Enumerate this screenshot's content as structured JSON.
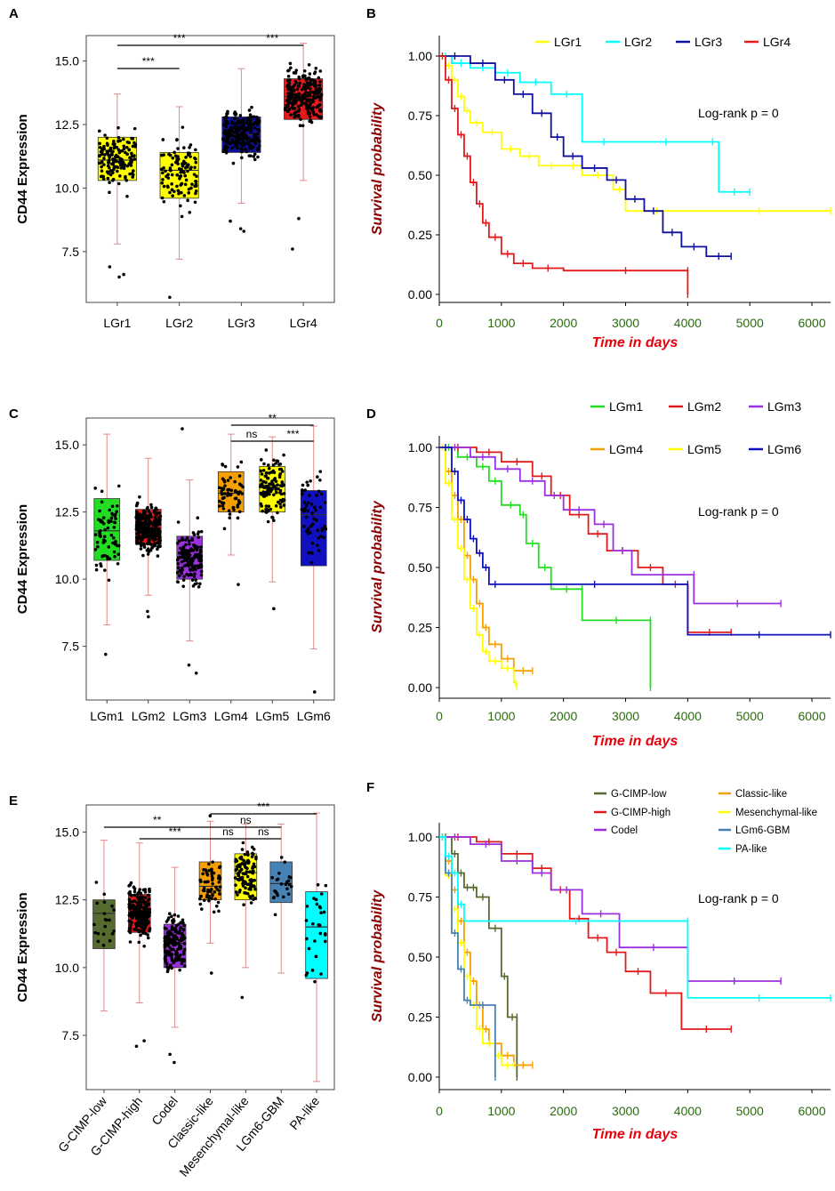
{
  "chart_data": [
    {
      "panel": "A",
      "type": "box",
      "ylabel": "CD44 Expression",
      "ylim": [
        5.5,
        16.0
      ],
      "yticks": [
        7.5,
        10.0,
        12.5,
        15.0
      ],
      "ytick_labels": [
        "7.5",
        "10.0",
        "12.5",
        "15.0"
      ],
      "groups": [
        {
          "name": "LGr1",
          "color": "#ffff00",
          "q1": 10.3,
          "median": 11.1,
          "q3": 12.0,
          "min": 7.8,
          "max": 13.7,
          "n": 150,
          "outliers": [
            6.5,
            6.6,
            6.9
          ]
        },
        {
          "name": "LGr2",
          "color": "#ffff00",
          "q1": 9.6,
          "median": 10.7,
          "q3": 11.4,
          "min": 7.2,
          "max": 13.2,
          "n": 110,
          "outliers": [
            5.7
          ]
        },
        {
          "name": "LGr3",
          "color": "#1010a0",
          "q1": 11.4,
          "median": 12.1,
          "q3": 12.8,
          "min": 9.4,
          "max": 14.7,
          "n": 230,
          "outliers": [
            8.3,
            8.4,
            8.7
          ]
        },
        {
          "name": "LGr4",
          "color": "#e31a1c",
          "q1": 12.7,
          "median": 13.6,
          "q3": 14.3,
          "min": 10.3,
          "max": 15.7,
          "n": 230,
          "outliers": [
            7.6,
            8.8
          ]
        }
      ],
      "sig": [
        {
          "from": 0,
          "to": 1,
          "label": "***",
          "level": 1
        },
        {
          "from": 0,
          "to": 2,
          "label": "***",
          "level": 2
        },
        {
          "from": 2,
          "to": 3,
          "label": "***",
          "level": 2
        }
      ]
    },
    {
      "panel": "B",
      "type": "line",
      "subtype": "kaplan-meier",
      "title": "",
      "xlabel": "Time in days",
      "ylabel": "Survival probability",
      "xlim": [
        0,
        6300
      ],
      "ylim": [
        0,
        1.05
      ],
      "xticks": [
        0,
        1000,
        2000,
        3000,
        4000,
        5000,
        6000
      ],
      "yticks": [
        "0.00",
        "0.25",
        "0.50",
        "0.75",
        "1.00"
      ],
      "annotation": "Log-rank p = 0",
      "legend_position": "top",
      "series": [
        {
          "name": "LGr1",
          "color": "#ffff00",
          "x": [
            0,
            100,
            200,
            300,
            400,
            500,
            700,
            1000,
            1300,
            1600,
            2000,
            2300,
            2800,
            3000,
            4000,
            6300
          ],
          "y": [
            1.0,
            0.96,
            0.9,
            0.83,
            0.77,
            0.72,
            0.68,
            0.61,
            0.58,
            0.54,
            0.54,
            0.5,
            0.44,
            0.35,
            0.35,
            0.35
          ]
        },
        {
          "name": "LGr2",
          "color": "#00ffff",
          "x": [
            0,
            200,
            500,
            900,
            1300,
            1800,
            2300,
            2300,
            3000,
            4300,
            4500,
            5000
          ],
          "y": [
            1.0,
            0.97,
            0.95,
            0.93,
            0.89,
            0.84,
            0.74,
            0.64,
            0.64,
            0.64,
            0.43,
            0.43
          ]
        },
        {
          "name": "LGr3",
          "color": "#1010a0",
          "x": [
            0,
            500,
            900,
            1200,
            1500,
            1800,
            2000,
            2300,
            2700,
            3000,
            3300,
            3600,
            3900,
            4300,
            4700
          ],
          "y": [
            1.0,
            0.97,
            0.9,
            0.84,
            0.76,
            0.66,
            0.58,
            0.53,
            0.48,
            0.4,
            0.35,
            0.26,
            0.2,
            0.16,
            0.16
          ]
        },
        {
          "name": "LGr4",
          "color": "#e31a1c",
          "x": [
            0,
            100,
            200,
            300,
            400,
            500,
            600,
            700,
            800,
            1000,
            1200,
            1500,
            2000,
            4000,
            4000
          ],
          "y": [
            1.0,
            0.9,
            0.78,
            0.67,
            0.58,
            0.47,
            0.38,
            0.3,
            0.24,
            0.17,
            0.13,
            0.11,
            0.1,
            0.1,
            0.0
          ]
        }
      ]
    },
    {
      "panel": "C",
      "type": "box",
      "ylabel": "CD44 Expression",
      "ylim": [
        5.5,
        16.0
      ],
      "yticks": [
        7.5,
        10.0,
        12.5,
        15.0
      ],
      "ytick_labels": [
        "7.5",
        "10.0",
        "12.5",
        "15.0"
      ],
      "groups": [
        {
          "name": "LGm1",
          "color": "#22dd22",
          "q1": 10.7,
          "median": 11.8,
          "q3": 13.0,
          "min": 8.3,
          "max": 15.4,
          "n": 70,
          "outliers": [
            7.2
          ]
        },
        {
          "name": "LGm2",
          "color": "#e31a1c",
          "q1": 11.3,
          "median": 11.9,
          "q3": 12.6,
          "min": 9.4,
          "max": 14.5,
          "n": 240,
          "outliers": [
            8.6,
            8.8
          ]
        },
        {
          "name": "LGm3",
          "color": "#9b30e0",
          "q1": 10.0,
          "median": 10.8,
          "q3": 11.6,
          "min": 7.7,
          "max": 13.7,
          "n": 150,
          "outliers": [
            6.5,
            6.8,
            15.6
          ]
        },
        {
          "name": "LGm4",
          "color": "#f5a000",
          "q1": 12.5,
          "median": 13.2,
          "q3": 14.0,
          "min": 10.9,
          "max": 15.4,
          "n": 60,
          "outliers": [
            9.8
          ]
        },
        {
          "name": "LGm5",
          "color": "#ffff00",
          "q1": 12.5,
          "median": 13.5,
          "q3": 14.2,
          "min": 9.9,
          "max": 15.3,
          "n": 120,
          "outliers": [
            8.9
          ]
        },
        {
          "name": "LGm6",
          "color": "#1010c0",
          "q1": 10.5,
          "median": 12.4,
          "q3": 13.3,
          "min": 7.4,
          "max": 15.7,
          "n": 55,
          "outliers": [
            5.8
          ]
        }
      ],
      "sig": [
        {
          "from": 3,
          "to": 4,
          "label": "ns",
          "level": 1
        },
        {
          "from": 4,
          "to": 5,
          "label": "***",
          "level": 1
        },
        {
          "from": 3,
          "to": 5,
          "label": "**",
          "level": 2
        }
      ]
    },
    {
      "panel": "D",
      "type": "line",
      "subtype": "kaplan-meier",
      "title": "",
      "xlabel": "Time in days",
      "ylabel": "Survival probability",
      "xlim": [
        0,
        6300
      ],
      "ylim": [
        0,
        1.05
      ],
      "xticks": [
        0,
        1000,
        2000,
        3000,
        4000,
        5000,
        6000
      ],
      "yticks": [
        "0.00",
        "0.25",
        "0.50",
        "0.75",
        "1.00"
      ],
      "annotation": "Log-rank p = 0",
      "legend_position": "top",
      "series": [
        {
          "name": "LGm1",
          "color": "#22dd22",
          "x": [
            0,
            300,
            600,
            800,
            1000,
            1300,
            1400,
            1600,
            1800,
            2300,
            2300,
            3400,
            3400
          ],
          "y": [
            1.0,
            0.96,
            0.92,
            0.86,
            0.76,
            0.72,
            0.6,
            0.5,
            0.41,
            0.41,
            0.28,
            0.28,
            0.0
          ]
        },
        {
          "name": "LGm2",
          "color": "#e31a1c",
          "x": [
            0,
            600,
            1000,
            1500,
            1800,
            2100,
            2400,
            2700,
            3200,
            3600,
            4000,
            4000,
            4700
          ],
          "y": [
            1.0,
            0.98,
            0.94,
            0.88,
            0.8,
            0.72,
            0.64,
            0.57,
            0.5,
            0.43,
            0.35,
            0.23,
            0.23
          ]
        },
        {
          "name": "LGm3",
          "color": "#9b30e0",
          "x": [
            0,
            500,
            900,
            1300,
            1700,
            2000,
            2500,
            2800,
            3100,
            4100,
            4100,
            5500
          ],
          "y": [
            1.0,
            0.96,
            0.91,
            0.86,
            0.8,
            0.74,
            0.68,
            0.57,
            0.47,
            0.47,
            0.35,
            0.35
          ]
        },
        {
          "name": "LGm4",
          "color": "#f5a000",
          "x": [
            0,
            100,
            200,
            300,
            400,
            500,
            600,
            700,
            800,
            1000,
            1200,
            1500
          ],
          "y": [
            1.0,
            0.9,
            0.8,
            0.7,
            0.55,
            0.45,
            0.35,
            0.25,
            0.18,
            0.12,
            0.07,
            0.07
          ]
        },
        {
          "name": "LGm5",
          "color": "#ffff00",
          "x": [
            0,
            100,
            200,
            300,
            400,
            500,
            600,
            700,
            800,
            1000,
            1200,
            1250
          ],
          "y": [
            1.0,
            0.85,
            0.7,
            0.58,
            0.45,
            0.33,
            0.22,
            0.15,
            0.11,
            0.08,
            0.02,
            0.0
          ]
        },
        {
          "name": "LGm6",
          "color": "#1010c0",
          "x": [
            0,
            200,
            300,
            400,
            500,
            600,
            700,
            800,
            1000,
            4000,
            4000,
            6300
          ],
          "y": [
            1.0,
            0.9,
            0.78,
            0.7,
            0.62,
            0.56,
            0.5,
            0.43,
            0.43,
            0.43,
            0.22,
            0.22
          ]
        }
      ]
    },
    {
      "panel": "E",
      "type": "box",
      "ylabel": "CD44 Expression",
      "ylim": [
        5.5,
        16.0
      ],
      "yticks": [
        7.5,
        10.0,
        12.5,
        15.0
      ],
      "ytick_labels": [
        "7.5",
        "10.0",
        "12.5",
        "15.0"
      ],
      "groups": [
        {
          "name": "G-CIMP-low",
          "color": "#556b2f",
          "q1": 10.7,
          "median": 12.0,
          "q3": 12.5,
          "min": 8.4,
          "max": 14.7,
          "n": 20,
          "outliers": []
        },
        {
          "name": "G-CIMP-high",
          "color": "#e31a1c",
          "q1": 11.3,
          "median": 12.0,
          "q3": 12.7,
          "min": 8.7,
          "max": 14.6,
          "n": 240,
          "outliers": [
            7.1,
            7.3
          ]
        },
        {
          "name": "Codel",
          "color": "#9b30e0",
          "q1": 10.0,
          "median": 10.9,
          "q3": 11.6,
          "min": 7.8,
          "max": 13.7,
          "n": 160,
          "outliers": [
            6.5,
            6.8
          ]
        },
        {
          "name": "Classic-like",
          "color": "#f5a000",
          "q1": 12.5,
          "median": 13.0,
          "q3": 13.9,
          "min": 10.9,
          "max": 15.4,
          "n": 60,
          "outliers": [
            9.8,
            15.6
          ]
        },
        {
          "name": "Mesenchymal-like",
          "color": "#ffff00",
          "q1": 12.5,
          "median": 13.5,
          "q3": 14.2,
          "min": 10.0,
          "max": 15.3,
          "n": 110,
          "outliers": [
            8.9
          ]
        },
        {
          "name": "LGm6-GBM",
          "color": "#4682b4",
          "q1": 12.4,
          "median": 13.1,
          "q3": 13.9,
          "min": 9.8,
          "max": 15.3,
          "n": 25,
          "outliers": []
        },
        {
          "name": "PA-like",
          "color": "#00ffff",
          "q1": 9.6,
          "median": 11.5,
          "q3": 12.8,
          "min": 5.8,
          "max": 15.7,
          "n": 28,
          "outliers": []
        }
      ],
      "sig": [
        {
          "from": 1,
          "to": 3,
          "label": "***",
          "level": 1
        },
        {
          "from": 3,
          "to": 4,
          "label": "ns",
          "level": 1
        },
        {
          "from": 4,
          "to": 5,
          "label": "ns",
          "level": 1
        },
        {
          "from": 0,
          "to": 3,
          "label": "**",
          "level": 2
        },
        {
          "from": 3,
          "to": 5,
          "label": "ns",
          "level": 2
        },
        {
          "from": 3,
          "to": 6,
          "label": "***",
          "level": 3
        }
      ]
    },
    {
      "panel": "F",
      "type": "line",
      "subtype": "kaplan-meier",
      "title": "",
      "xlabel": "Time in days",
      "ylabel": "Survival probability",
      "xlim": [
        0,
        6300
      ],
      "ylim": [
        0,
        1.05
      ],
      "xticks": [
        0,
        1000,
        2000,
        3000,
        4000,
        5000,
        6000
      ],
      "yticks": [
        "0.00",
        "0.25",
        "0.50",
        "0.75",
        "1.00"
      ],
      "annotation": "Log-rank p = 0",
      "legend_position": "top-right",
      "series": [
        {
          "name": "G-CIMP-low",
          "color": "#556b2f",
          "x": [
            0,
            200,
            300,
            400,
            500,
            600,
            800,
            1000,
            1100,
            1250,
            1250
          ],
          "y": [
            1.0,
            0.93,
            0.85,
            0.79,
            0.79,
            0.75,
            0.62,
            0.42,
            0.25,
            0.25,
            0.0
          ]
        },
        {
          "name": "G-CIMP-high",
          "color": "#e31a1c",
          "x": [
            0,
            600,
            1000,
            1500,
            1800,
            2100,
            2400,
            2700,
            3000,
            3400,
            3900,
            4700
          ],
          "y": [
            1.0,
            0.98,
            0.93,
            0.87,
            0.78,
            0.66,
            0.58,
            0.52,
            0.44,
            0.35,
            0.2,
            0.2
          ]
        },
        {
          "name": "Codel",
          "color": "#9b30e0",
          "x": [
            0,
            500,
            1000,
            1500,
            1800,
            2300,
            2900,
            4000,
            4000,
            5500
          ],
          "y": [
            1.0,
            0.97,
            0.9,
            0.85,
            0.78,
            0.68,
            0.54,
            0.54,
            0.4,
            0.4
          ]
        },
        {
          "name": "Classic-like",
          "color": "#f5a000",
          "x": [
            0,
            100,
            200,
            300,
            400,
            500,
            600,
            700,
            800,
            1000,
            1200,
            1500
          ],
          "y": [
            1.0,
            0.9,
            0.78,
            0.65,
            0.52,
            0.4,
            0.3,
            0.2,
            0.14,
            0.09,
            0.05,
            0.05
          ]
        },
        {
          "name": "Mesenchymal-like",
          "color": "#ffff00",
          "x": [
            0,
            100,
            200,
            300,
            400,
            500,
            600,
            700,
            900,
            1000,
            1200
          ],
          "y": [
            1.0,
            0.84,
            0.7,
            0.56,
            0.42,
            0.3,
            0.2,
            0.14,
            0.09,
            0.05,
            0.05
          ]
        },
        {
          "name": "LGm6-GBM",
          "color": "#4682b4",
          "x": [
            0,
            100,
            200,
            300,
            400,
            500,
            900,
            900
          ],
          "y": [
            1.0,
            0.85,
            0.6,
            0.45,
            0.32,
            0.3,
            0.1,
            0.0
          ]
        },
        {
          "name": "PA-like",
          "color": "#00ffff",
          "x": [
            0,
            100,
            200,
            300,
            400,
            4000,
            4000,
            6300
          ],
          "y": [
            1.0,
            0.92,
            0.85,
            0.72,
            0.65,
            0.65,
            0.33,
            0.33
          ]
        }
      ]
    }
  ]
}
